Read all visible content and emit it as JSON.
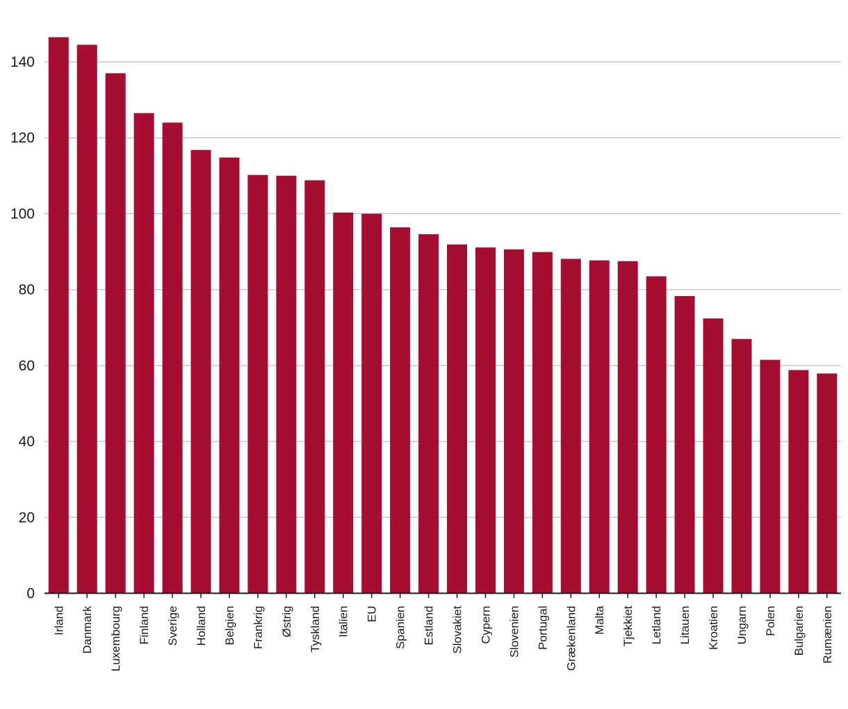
{
  "colors": {
    "bar": "#a50d31",
    "grid": "#c8c8c8",
    "axis": "#1a1a1a",
    "text": "#1a1a1a",
    "background": "#ffffff"
  },
  "chart_data": {
    "type": "bar",
    "title": "",
    "xlabel": "",
    "ylabel": "",
    "ylim": [
      0,
      150
    ],
    "yticks": [
      0,
      20,
      40,
      60,
      80,
      100,
      120,
      140
    ],
    "grid": true,
    "legend": "none",
    "categories": [
      "Irland",
      "Danmark",
      "Luxembourg",
      "Finland",
      "Sverige",
      "Holland",
      "Belgien",
      "Frankrig",
      "Østrig",
      "Tyskland",
      "Italien",
      "EU",
      "Spanien",
      "Estland",
      "Slovakiet",
      "Cypern",
      "Slovenien",
      "Portugal",
      "Grækenland",
      "Malta",
      "Tjekkiet",
      "Letland",
      "Litauen",
      "Kroatien",
      "Ungarn",
      "Polen",
      "Bulgarien",
      "Rumænien"
    ],
    "values": [
      146.5,
      144.5,
      137,
      126.5,
      124,
      116.8,
      114.8,
      110.2,
      110,
      108.8,
      100.3,
      100,
      96.4,
      94.6,
      91.9,
      91.1,
      90.6,
      89.9,
      88.1,
      87.7,
      87.5,
      83.5,
      78.3,
      72.4,
      67,
      61.5,
      58.8,
      57.9
    ]
  }
}
